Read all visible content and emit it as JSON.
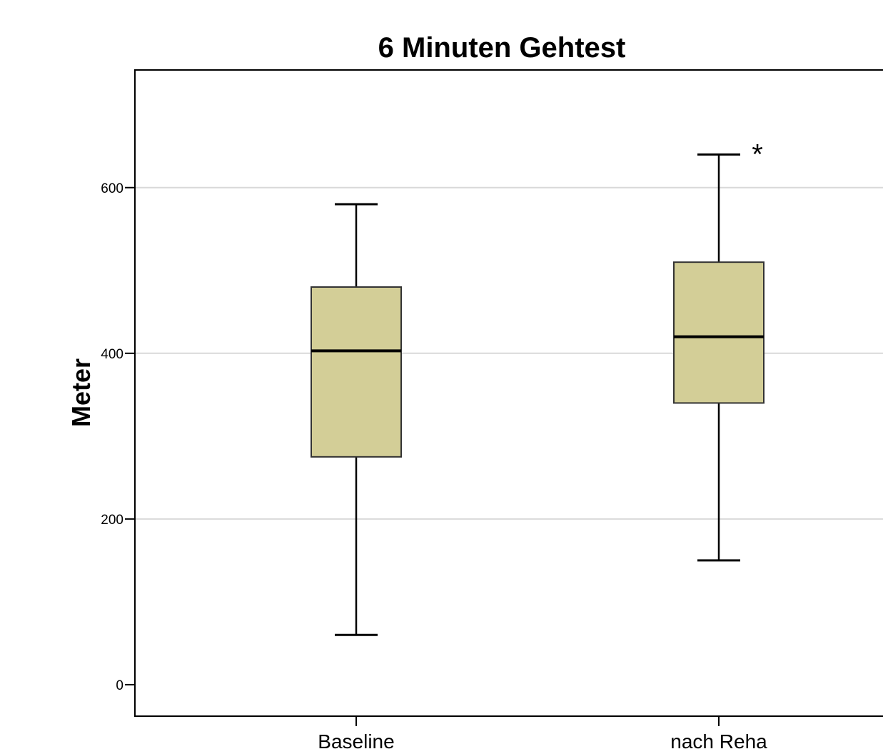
{
  "chart_data": {
    "type": "boxplot",
    "title": "6 Minuten Gehtest",
    "xlabel": "",
    "ylabel": "Meter",
    "ylim": [
      -38,
      742
    ],
    "yticks": [
      0,
      200,
      400,
      600
    ],
    "grid": true,
    "categories": [
      "Baseline",
      "nach Reha"
    ],
    "boxes": [
      {
        "category": "Baseline",
        "whisker_low": 60,
        "q1": 275,
        "median": 403,
        "q3": 480,
        "whisker_high": 580,
        "outliers": []
      },
      {
        "category": "nach Reha",
        "whisker_low": 150,
        "q1": 340,
        "median": 420,
        "q3": 510,
        "whisker_high": 640,
        "outliers": [],
        "extremes": [
          640
        ]
      }
    ],
    "extreme_marker": "*",
    "box_color": "#d3ce97"
  }
}
